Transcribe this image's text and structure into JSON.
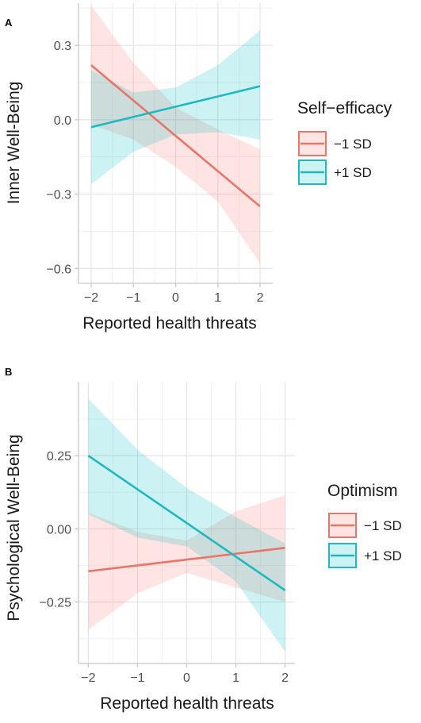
{
  "chart_data": [
    {
      "panel": "A",
      "type": "line",
      "xlabel": "Reported health threats",
      "ylabel": "Inner Well-Being",
      "xlim": [
        -2.3,
        2.3
      ],
      "ylim": [
        -0.66,
        0.47
      ],
      "xticks": [
        -2,
        -1,
        0,
        1,
        2
      ],
      "xtick_labels": [
        "−2",
        "−1",
        "0",
        "1",
        "2"
      ],
      "yticks": [
        0.3,
        0.0,
        -0.3,
        -0.6
      ],
      "ytick_labels": [
        "0.3",
        "0.0",
        "−0.3",
        "−0.6"
      ],
      "grid": true,
      "legend_title": "Self−efficacy",
      "legend_position": "right",
      "series": [
        {
          "name": "−1 SD",
          "color": "#e8756a",
          "fill": "#f8766d",
          "x": [
            -2,
            2
          ],
          "y": [
            0.22,
            -0.35
          ],
          "ci_x": [
            -2,
            -1,
            0,
            1,
            2
          ],
          "ci_lower": [
            -0.02,
            -0.08,
            -0.19,
            -0.33,
            -0.58
          ],
          "ci_upper": [
            0.46,
            0.23,
            0.05,
            -0.04,
            -0.12
          ]
        },
        {
          "name": "+1 SD",
          "color": "#1fb8be",
          "fill": "#00bfc4",
          "x": [
            -2,
            2
          ],
          "y": [
            -0.03,
            0.135
          ],
          "ci_x": [
            -2,
            -1,
            0,
            1,
            2
          ],
          "ci_lower": [
            -0.26,
            -0.13,
            -0.06,
            -0.05,
            -0.08
          ],
          "ci_upper": [
            0.2,
            0.11,
            0.13,
            0.22,
            0.36
          ]
        }
      ]
    },
    {
      "panel": "B",
      "type": "line",
      "xlabel": "Reported health threats",
      "ylabel": "Psychological Well-Being",
      "xlim": [
        -2.2,
        2.2
      ],
      "ylim": [
        -0.46,
        0.5
      ],
      "xticks": [
        -2,
        -1,
        0,
        1,
        2
      ],
      "xtick_labels": [
        "−2",
        "−1",
        "0",
        "1",
        "2"
      ],
      "yticks": [
        0.25,
        0.0,
        -0.25
      ],
      "ytick_labels": [
        "0.25",
        "0.00",
        "−0.25"
      ],
      "grid": true,
      "legend_title": "Optimism",
      "legend_position": "right",
      "series": [
        {
          "name": "−1 SD",
          "color": "#e8756a",
          "fill": "#f8766d",
          "x": [
            -2,
            2
          ],
          "y": [
            -0.145,
            -0.065
          ],
          "ci_x": [
            -2,
            -1,
            0,
            1,
            2
          ],
          "ci_lower": [
            -0.345,
            -0.22,
            -0.15,
            -0.2,
            -0.25
          ],
          "ci_upper": [
            0.055,
            -0.01,
            -0.04,
            0.06,
            0.115
          ]
        },
        {
          "name": "+1 SD",
          "color": "#1fb8be",
          "fill": "#00bfc4",
          "x": [
            -2,
            2
          ],
          "y": [
            0.25,
            -0.21
          ],
          "ci_x": [
            -2,
            -1,
            0,
            1,
            2
          ],
          "ci_lower": [
            0.05,
            -0.03,
            -0.06,
            -0.18,
            -0.42
          ],
          "ci_upper": [
            0.445,
            0.27,
            0.14,
            0.04,
            -0.05
          ]
        }
      ]
    }
  ]
}
